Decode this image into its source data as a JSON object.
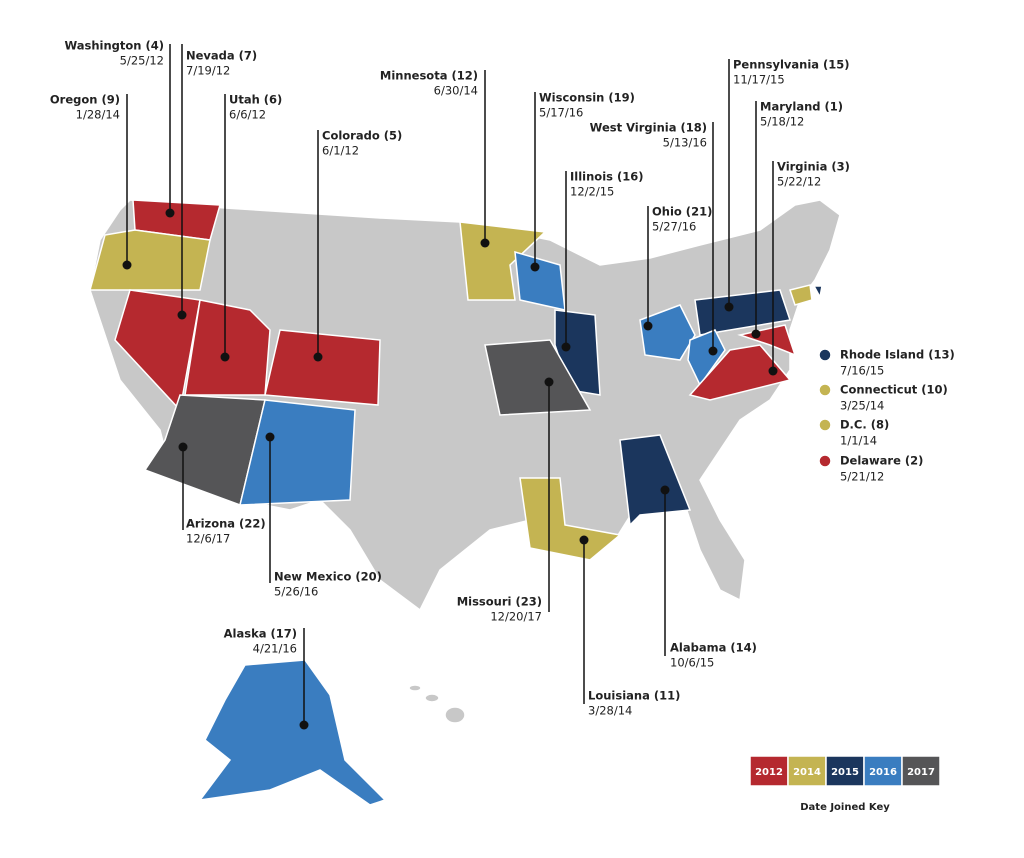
{
  "annotations": [
    {
      "name": "Washington (4)",
      "date": "5/25/12"
    },
    {
      "name": "Nevada (7)",
      "date": "7/19/12"
    },
    {
      "name": "Oregon (9)",
      "date": "1/28/14"
    },
    {
      "name": "Utah (6)",
      "date": "6/6/12"
    },
    {
      "name": "Colorado (5)",
      "date": "6/1/12"
    },
    {
      "name": "Minnesota (12)",
      "date": "6/30/14"
    },
    {
      "name": "Wisconsin (19)",
      "date": "5/17/16"
    },
    {
      "name": "Pennsylvania (15)",
      "date": "11/17/15"
    },
    {
      "name": "Maryland (1)",
      "date": "5/18/12"
    },
    {
      "name": "West Virginia (18)",
      "date": "5/13/16"
    },
    {
      "name": "Virginia (3)",
      "date": "5/22/12"
    },
    {
      "name": "Illinois (16)",
      "date": "12/2/15"
    },
    {
      "name": "Ohio (21)",
      "date": "5/27/16"
    },
    {
      "name": "Missouri (23)",
      "date": "12/20/17"
    },
    {
      "name": "Louisiana (11)",
      "date": "3/28/14"
    },
    {
      "name": "Alabama (14)",
      "date": "10/6/15"
    },
    {
      "name": "Arizona (22)",
      "date": "12/6/17"
    },
    {
      "name": "New Mexico (20)",
      "date": "5/26/16"
    },
    {
      "name": "Alaska (17)",
      "date": "4/21/16"
    }
  ],
  "side_legend": [
    {
      "name": "Rhode Island (13)",
      "date": "7/16/15"
    },
    {
      "name": "Connecticut (10)",
      "date": "3/25/14"
    },
    {
      "name": "D.C. (8)",
      "date": "1/1/14"
    },
    {
      "name": "Delaware (2)",
      "date": "5/21/12"
    }
  ],
  "key": {
    "title": "Date Joined Key",
    "items": [
      "2012",
      "2014",
      "2015",
      "2016",
      "2017"
    ]
  }
}
